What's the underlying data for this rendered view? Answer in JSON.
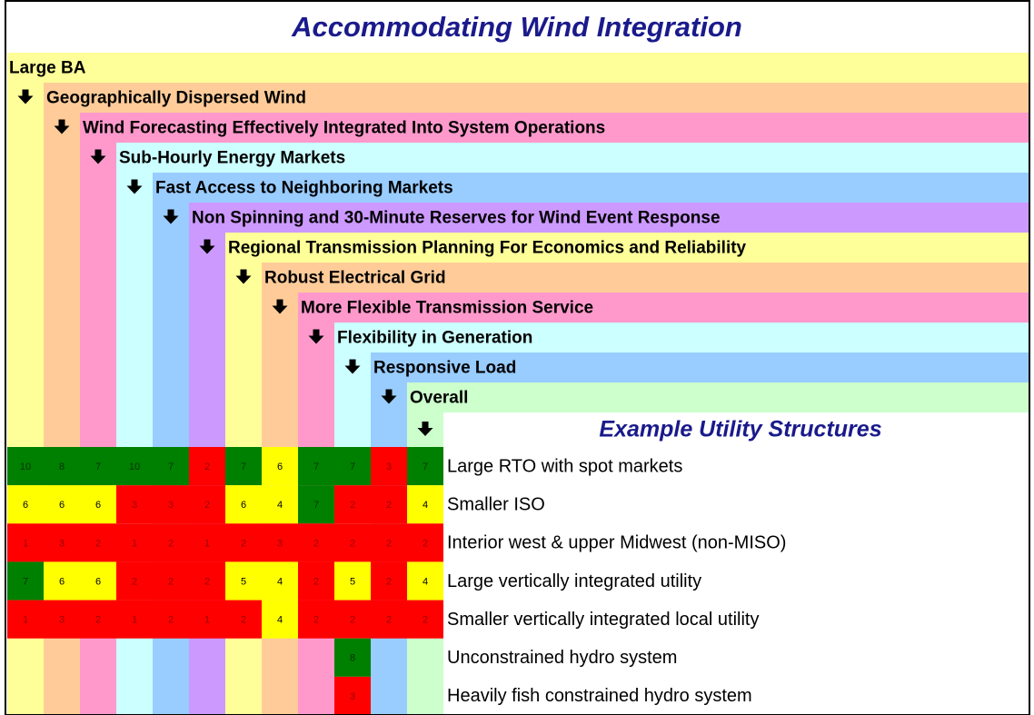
{
  "title": "Accommodating Wind Integration",
  "factors": [
    {
      "label": "Large BA",
      "color": "#ffff99"
    },
    {
      "label": "Geographically Dispersed Wind",
      "color": "#ffcc99"
    },
    {
      "label": "Wind Forecasting Effectively Integrated Into System Operations",
      "color": "#ff99cc"
    },
    {
      "label": "Sub-Hourly Energy Markets",
      "color": "#ccffff"
    },
    {
      "label": "Fast Access to Neighboring Markets",
      "color": "#99ccff"
    },
    {
      "label": "Non Spinning and 30-Minute Reserves for Wind Event Response",
      "color": "#cc99ff"
    },
    {
      "label": "Regional Transmission Planning For Economics and Reliability",
      "color": "#ffff99"
    },
    {
      "label": "Robust Electrical Grid",
      "color": "#ffcc99"
    },
    {
      "label": "More Flexible Transmission Service",
      "color": "#ff99cc"
    },
    {
      "label": "Flexibility in Generation",
      "color": "#ccffff"
    },
    {
      "label": "Responsive Load",
      "color": "#99ccff"
    },
    {
      "label": "Overall",
      "color": "#ccffcc"
    }
  ],
  "utility_header": "Example Utility Structures",
  "utilities": [
    {
      "label": "Large RTO with spot markets",
      "scores": [
        10,
        8,
        7,
        10,
        7,
        2,
        7,
        6,
        7,
        7,
        3,
        7
      ]
    },
    {
      "label": "Smaller ISO",
      "scores": [
        6,
        6,
        6,
        3,
        3,
        2,
        6,
        4,
        7,
        2,
        2,
        4
      ]
    },
    {
      "label": "Interior west & upper Midwest (non-MISO)",
      "scores": [
        1,
        3,
        2,
        1,
        2,
        1,
        2,
        3,
        2,
        2,
        2,
        2
      ]
    },
    {
      "label": "Large vertically integrated utility",
      "scores": [
        7,
        6,
        6,
        2,
        2,
        2,
        5,
        4,
        2,
        5,
        2,
        4
      ]
    },
    {
      "label": "Smaller vertically integrated local utility",
      "scores": [
        1,
        3,
        2,
        1,
        2,
        1,
        2,
        4,
        2,
        2,
        2,
        2
      ]
    },
    {
      "label": "Unconstrained hydro system",
      "scores": [
        null,
        null,
        null,
        null,
        null,
        null,
        null,
        null,
        null,
        8,
        null,
        null
      ]
    },
    {
      "label": "Heavily fish constrained hydro system",
      "scores": [
        null,
        null,
        null,
        null,
        null,
        null,
        null,
        null,
        null,
        3,
        null,
        null
      ]
    }
  ]
}
